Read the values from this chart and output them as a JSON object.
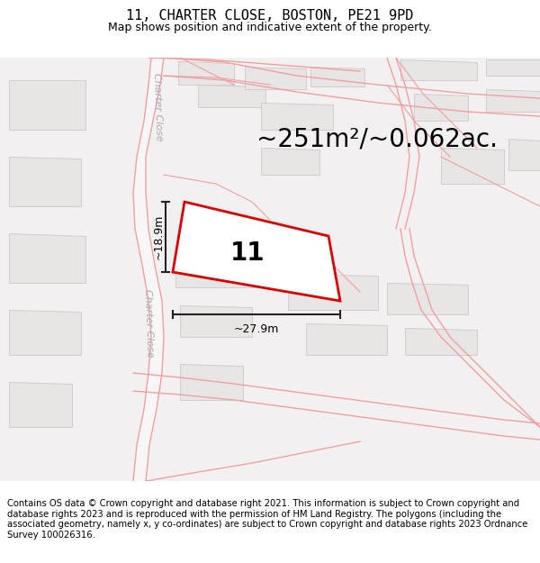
{
  "title": "11, CHARTER CLOSE, BOSTON, PE21 9PD",
  "subtitle": "Map shows position and indicative extent of the property.",
  "area_text": "~251m²/~0.062ac.",
  "plot_number": "11",
  "dim_width": "~27.9m",
  "dim_height": "~18.9m",
  "footer": "Contains OS data © Crown copyright and database right 2021. This information is subject to Crown copyright and database rights 2023 and is reproduced with the permission of HM Land Registry. The polygons (including the associated geometry, namely x, y co-ordinates) are subject to Crown copyright and database rights 2023 Ordnance Survey 100026316.",
  "bg_color": "#ffffff",
  "map_bg": "#f2f0f0",
  "road_line_color": "#f0a0a0",
  "road_fill_color": "#ffffff",
  "building_color": "#e8e5e5",
  "building_edge": "#d0c8c8",
  "plot_outline_color": "#dd0000",
  "plot_fill_color": "#ffffff",
  "dim_color": "#222222",
  "street_label_color": "#aaaaaa",
  "title_fontsize": 11,
  "subtitle_fontsize": 9,
  "area_fontsize": 20,
  "plot_num_fontsize": 20,
  "dim_fontsize": 9,
  "street_fontsize": 8,
  "footer_fontsize": 7.2
}
